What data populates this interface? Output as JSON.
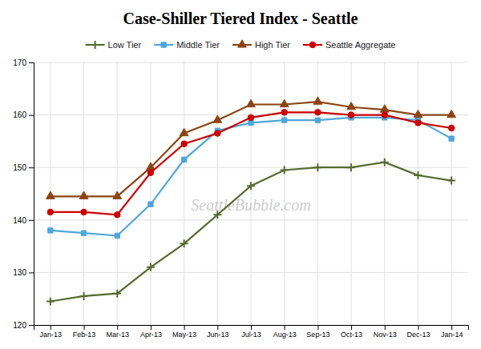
{
  "chart_data": {
    "type": "line",
    "title": "Case-Shiller Tiered Index - Seattle",
    "annotation": "SeattleBubble.com",
    "categories": [
      "Jan-13",
      "Feb-13",
      "Mar-13",
      "Apr-13",
      "May-13",
      "Jun-13",
      "Jul-13",
      "Aug-13",
      "Sep-13",
      "Oct-13",
      "Nov-13",
      "Dec-13",
      "Jan-14"
    ],
    "series": [
      {
        "name": "Low Tier",
        "color": "#556B2F",
        "marker": "plus",
        "line_style": "solid",
        "values": [
          124.5,
          125.5,
          126.0,
          131.0,
          135.5,
          141.0,
          146.5,
          149.5,
          150.0,
          150.0,
          151.0,
          148.5,
          147.5
        ]
      },
      {
        "name": "Middle Tier",
        "color": "#4EA6DC",
        "marker": "square",
        "line_style": "solid",
        "values": [
          138.0,
          137.5,
          137.0,
          143.0,
          151.5,
          157.0,
          158.5,
          159.0,
          159.0,
          159.5,
          159.5,
          159.0,
          155.5
        ]
      },
      {
        "name": "High Tier",
        "color": "#8B4513",
        "marker": "triangle",
        "line_style": "solid",
        "values": [
          144.5,
          144.5,
          144.5,
          150.0,
          156.5,
          159.0,
          162.0,
          162.0,
          162.5,
          161.5,
          161.0,
          160.0,
          160.0
        ]
      },
      {
        "name": "Seattle Aggregate",
        "color": "#CC0000",
        "marker": "circle",
        "line_style": "solid",
        "values": [
          141.5,
          141.5,
          141.0,
          149.0,
          154.5,
          156.5,
          159.5,
          160.5,
          160.5,
          160.0,
          160.0,
          158.5,
          157.5
        ]
      }
    ],
    "ylim": [
      120,
      170
    ],
    "yticks": [
      120,
      130,
      140,
      150,
      160,
      170
    ],
    "grid": true,
    "legend": "top"
  }
}
